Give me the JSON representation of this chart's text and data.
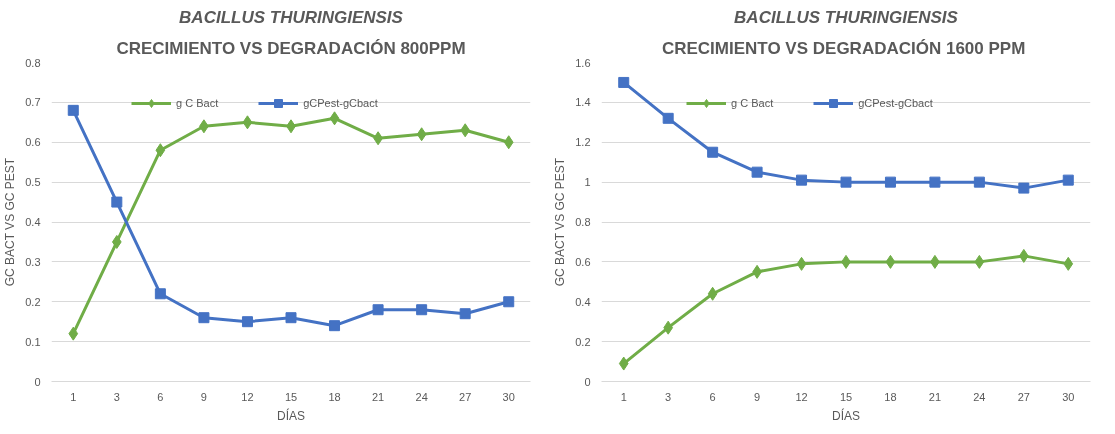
{
  "chart_data": [
    {
      "type": "line",
      "title": "BACILLUS THURINGIENSIS",
      "subtitle": "CRECIMIENTO VS DEGRADACIÓN 800PPM",
      "xlabel": "DÍAS",
      "ylabel": "GC BACT VS GC PEST",
      "categories": [
        "1",
        "3",
        "6",
        "9",
        "12",
        "15",
        "18",
        "21",
        "24",
        "27",
        "30"
      ],
      "series": [
        {
          "name": "g C Bact",
          "color": "#70ad47",
          "marker": "diamond",
          "values": [
            0.12,
            0.35,
            0.58,
            0.64,
            0.65,
            0.64,
            0.66,
            0.61,
            0.62,
            0.63,
            0.6
          ]
        },
        {
          "name": "gCPest-gCbact",
          "color": "#4472c4",
          "marker": "square",
          "values": [
            0.68,
            0.45,
            0.22,
            0.16,
            0.15,
            0.16,
            0.14,
            0.18,
            0.18,
            0.17,
            0.2
          ]
        }
      ],
      "ylim": [
        0,
        0.8
      ],
      "yticks": [
        0,
        0.1,
        0.2,
        0.3,
        0.4,
        0.5,
        0.6,
        0.7,
        0.8
      ],
      "grid": "y",
      "legend": "top"
    },
    {
      "type": "line",
      "title": "BACILLUS THURINGIENSIS",
      "subtitle": "CRECIMIENTO VS DEGRADACIÓN  1600 PPM",
      "xlabel": "DÍAS",
      "ylabel": "GC BACT VS GC PEST",
      "categories": [
        "1",
        "3",
        "6",
        "9",
        "12",
        "15",
        "18",
        "21",
        "24",
        "27",
        "30"
      ],
      "series": [
        {
          "name": "g C Bact",
          "color": "#70ad47",
          "marker": "diamond",
          "values": [
            0.09,
            0.27,
            0.44,
            0.55,
            0.59,
            0.6,
            0.6,
            0.6,
            0.6,
            0.63,
            0.59
          ]
        },
        {
          "name": "gCPest-gCbact",
          "color": "#4472c4",
          "marker": "square",
          "values": [
            1.5,
            1.32,
            1.15,
            1.05,
            1.01,
            1.0,
            1.0,
            1.0,
            1.0,
            0.97,
            1.01
          ]
        }
      ],
      "ylim": [
        0,
        1.6
      ],
      "yticks": [
        0,
        0.2,
        0.4,
        0.6,
        0.8,
        1,
        1.2,
        1.4,
        1.6
      ],
      "grid": "y",
      "legend": "top"
    }
  ]
}
